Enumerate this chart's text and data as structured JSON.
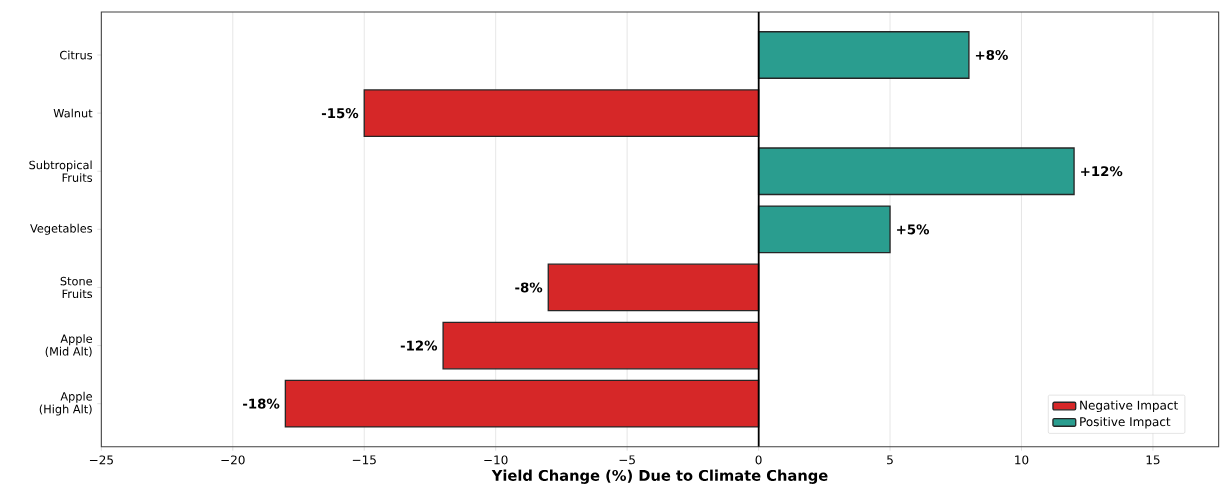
{
  "chart_data": {
    "type": "bar",
    "orientation": "horizontal",
    "xlabel": "Yield Change (%) Due to Climate Change",
    "categories": [
      "Citrus",
      "Walnut",
      "Subtropical\nFruits",
      "Vegetables",
      "Stone\nFruits",
      "Apple\n(Mid Alt)",
      "Apple\n(High Alt)"
    ],
    "series": [
      {
        "name": "Negative Impact",
        "color": "#d62728",
        "values": [
          null,
          -15,
          null,
          null,
          -8,
          -12,
          -18
        ],
        "value_labels": [
          null,
          "-15%",
          null,
          null,
          "-8%",
          "-12%",
          "-18%"
        ]
      },
      {
        "name": "Positive Impact",
        "color": "#2a9d8f",
        "values": [
          8,
          null,
          12,
          5,
          null,
          null,
          null
        ],
        "value_labels": [
          "+8%",
          null,
          "+12%",
          "+5%",
          null,
          null,
          null
        ]
      }
    ],
    "xlim": [
      -25,
      17.5
    ],
    "xticks": [
      {
        "value": -25,
        "label": "−25"
      },
      {
        "value": -20,
        "label": "−20"
      },
      {
        "value": -15,
        "label": "−15"
      },
      {
        "value": -10,
        "label": "−10"
      },
      {
        "value": -5,
        "label": "−5"
      },
      0,
      5,
      10,
      15
    ],
    "ref_lines": [
      {
        "axis": "x",
        "value": 0,
        "color": "#000000"
      }
    ],
    "grid": "x",
    "legend": "bottom right"
  }
}
